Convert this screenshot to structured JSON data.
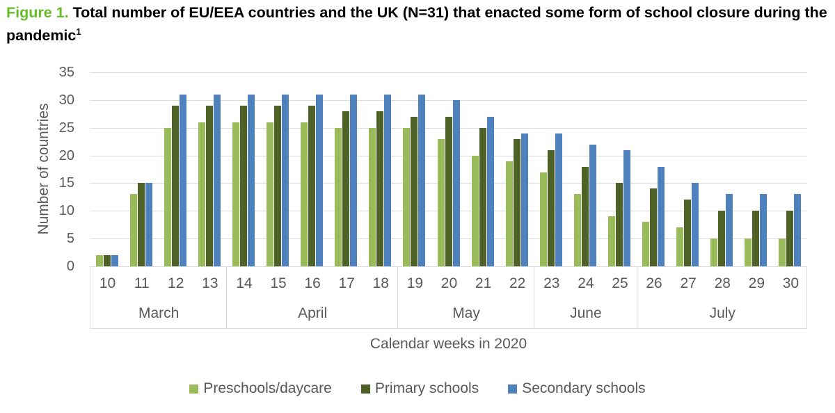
{
  "title": {
    "figure_label": "Figure 1.",
    "text": " Total number of EU/EEA countries and the UK (N=31) that enacted some form of school closure during the pandemic",
    "footnote_marker": "1"
  },
  "colors": {
    "figure_label_green": "#65BE28",
    "preschools_green": "#9ABB59",
    "primary_dark_green": "#4E6228",
    "secondary_blue": "#4F81BD",
    "gridline_gray": "#D9D9D9",
    "axis_text_gray": "#595959"
  },
  "chart_data": {
    "type": "bar",
    "title": "Figure 1. Total number of EU/EEA countries and the UK (N=31) that enacted some form of school closure during the pandemic",
    "xlabel": "Calendar weeks in 2020",
    "ylabel": "Number of countries",
    "ylim": [
      0,
      35
    ],
    "yticks": [
      0,
      5,
      10,
      15,
      20,
      25,
      30,
      35
    ],
    "grid": true,
    "legend_position": "bottom",
    "categories": [
      "10",
      "11",
      "12",
      "13",
      "14",
      "15",
      "16",
      "17",
      "18",
      "19",
      "20",
      "21",
      "22",
      "23",
      "24",
      "25",
      "26",
      "27",
      "28",
      "29",
      "30"
    ],
    "month_groups": [
      {
        "label": "March",
        "span": 4
      },
      {
        "label": "April",
        "span": 5
      },
      {
        "label": "May",
        "span": 4
      },
      {
        "label": "June",
        "span": 3
      },
      {
        "label": "July",
        "span": 5
      }
    ],
    "series": [
      {
        "name": "Preschools/daycare",
        "color": "#9ABB59",
        "values": [
          2,
          13,
          25,
          26,
          26,
          26,
          26,
          25,
          25,
          25,
          23,
          20,
          19,
          17,
          13,
          9,
          8,
          7,
          5,
          5,
          5
        ]
      },
      {
        "name": "Primary schools",
        "color": "#4E6228",
        "values": [
          2,
          15,
          29,
          29,
          29,
          29,
          29,
          28,
          28,
          27,
          27,
          25,
          23,
          21,
          18,
          15,
          14,
          12,
          10,
          10,
          10
        ]
      },
      {
        "name": "Secondary schools",
        "color": "#4F81BD",
        "values": [
          2,
          15,
          31,
          31,
          31,
          31,
          31,
          31,
          31,
          31,
          30,
          27,
          24,
          24,
          22,
          21,
          18,
          15,
          13,
          13,
          13
        ]
      }
    ]
  }
}
